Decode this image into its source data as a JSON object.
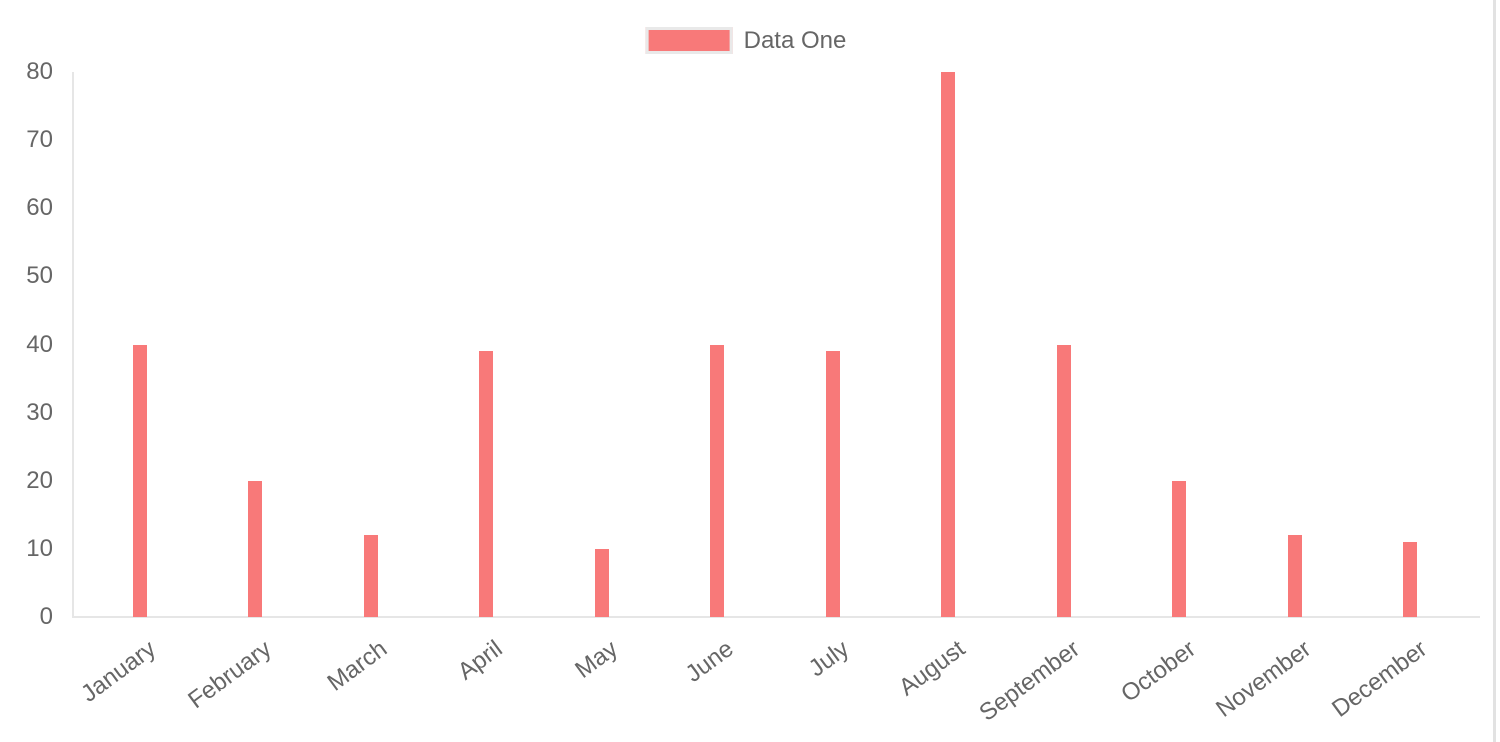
{
  "chart_data": {
    "type": "bar",
    "title": "",
    "categories": [
      "January",
      "February",
      "March",
      "April",
      "May",
      "June",
      "July",
      "August",
      "September",
      "October",
      "November",
      "December"
    ],
    "series": [
      {
        "name": "Data One",
        "values": [
          40,
          20,
          12,
          39,
          10,
          40,
          39,
          80,
          40,
          20,
          12,
          11
        ],
        "color": "#f87979"
      }
    ],
    "ylim": [
      0,
      80
    ],
    "yticks": [
      0,
      10,
      20,
      30,
      40,
      50,
      60,
      70,
      80
    ],
    "xlabel": "",
    "ylabel": "",
    "grid": false,
    "legend_position": "top",
    "colors": {
      "bar_fill": "#f87979",
      "axis_line": "#e6e6e6",
      "tick_label": "#666666",
      "legend_swatch_border": "#e9e9e9",
      "background": "#ffffff"
    }
  }
}
